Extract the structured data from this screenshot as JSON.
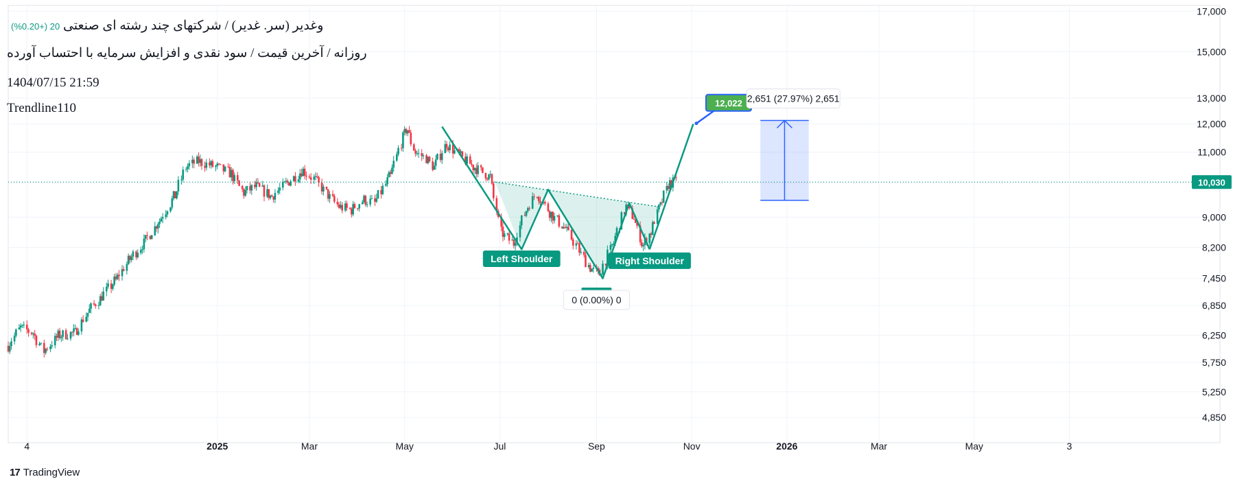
{
  "header": {
    "symbol": "وغدیر (سر. غدیر) / شرکتهای چند رشته ای صنعتی",
    "change": "20 (+0.20%)",
    "subtitle": "روزانه / آخرین قیمت / سود نقدی و افزایش سرمایه با احتساب آورده",
    "datetime": "1404/07/15 21:59",
    "author": "Trendline110"
  },
  "footer": {
    "brand": "TradingView",
    "logo_icon": "tradingview-logo-icon"
  },
  "colors": {
    "up": "#089981",
    "down": "#f23645",
    "pattern": "#089981",
    "pattern_fill": "rgba(8,153,129,0.14)",
    "projection": "#2962ff",
    "projection_fill": "rgba(41,98,255,0.16)",
    "target_badge": "#4caf50",
    "price_badge": "#089981",
    "grid": "#f0f3fa"
  },
  "chart_data": {
    "type": "candlestick",
    "y_scale": "log",
    "ylim": [
      4700,
      17300
    ],
    "x_range": [
      "2024-08-20",
      "2026-09-10"
    ],
    "y_ticks": [
      17000,
      15000,
      13000,
      12000,
      11000,
      10000,
      9000,
      8200,
      7450,
      6850,
      6250,
      5750,
      5250,
      4850
    ],
    "y_tick_labels": [
      "17,000",
      "15,000",
      "13,000",
      "12,000",
      "11,000",
      "10,000",
      "9,000",
      "8,200",
      "7,450",
      "6,850",
      "6,250",
      "5,750",
      "5,250",
      "4,850"
    ],
    "x_ticks": [
      {
        "date": "2024-09-01",
        "label": "4"
      },
      {
        "date": "2025-01-01",
        "label": "2025"
      },
      {
        "date": "2025-03-01",
        "label": "Mar"
      },
      {
        "date": "2025-05-01",
        "label": "May"
      },
      {
        "date": "2025-07-01",
        "label": "Jul"
      },
      {
        "date": "2025-09-01",
        "label": "Sep"
      },
      {
        "date": "2025-11-01",
        "label": "Nov"
      },
      {
        "date": "2026-01-01",
        "label": "2026"
      },
      {
        "date": "2026-03-01",
        "label": "Mar"
      },
      {
        "date": "2026-05-01",
        "label": "May"
      },
      {
        "date": "2026-07-01",
        "label": "3"
      }
    ],
    "last_price": 10030,
    "last_price_label": "10,030",
    "close_path": [
      [
        "2024-08-20",
        6050
      ],
      [
        "2024-08-28",
        6400
      ],
      [
        "2024-09-05",
        6300
      ],
      [
        "2024-09-12",
        5950
      ],
      [
        "2024-09-22",
        6250
      ],
      [
        "2024-10-02",
        6300
      ],
      [
        "2024-10-10",
        6700
      ],
      [
        "2024-10-18",
        7000
      ],
      [
        "2024-10-28",
        7400
      ],
      [
        "2024-11-06",
        7900
      ],
      [
        "2024-11-15",
        8300
      ],
      [
        "2024-11-25",
        8900
      ],
      [
        "2024-12-05",
        9600
      ],
      [
        "2024-12-12",
        10500
      ],
      [
        "2024-12-20",
        10700
      ],
      [
        "2025-01-01",
        10500
      ],
      [
        "2025-01-10",
        10300
      ],
      [
        "2025-01-18",
        9700
      ],
      [
        "2025-01-26",
        9900
      ],
      [
        "2025-02-05",
        9600
      ],
      [
        "2025-02-15",
        10000
      ],
      [
        "2025-02-25",
        10400
      ],
      [
        "2025-03-05",
        10100
      ],
      [
        "2025-03-12",
        9700
      ],
      [
        "2025-03-20",
        9300
      ],
      [
        "2025-03-28",
        9200
      ],
      [
        "2025-04-05",
        9500
      ],
      [
        "2025-04-12",
        9400
      ],
      [
        "2025-04-22",
        10200
      ],
      [
        "2025-04-30",
        11500
      ],
      [
        "2025-05-03",
        11800
      ],
      [
        "2025-05-08",
        11000
      ],
      [
        "2025-05-15",
        10800
      ],
      [
        "2025-05-20",
        10500
      ],
      [
        "2025-05-28",
        11300
      ],
      [
        "2025-06-05",
        10900
      ],
      [
        "2025-06-15",
        10500
      ],
      [
        "2025-06-25",
        10200
      ],
      [
        "2025-07-02",
        8600
      ],
      [
        "2025-07-10",
        8300
      ],
      [
        "2025-07-18",
        9200
      ],
      [
        "2025-07-25",
        9700
      ],
      [
        "2025-08-03",
        9100
      ],
      [
        "2025-08-12",
        8700
      ],
      [
        "2025-08-20",
        8200
      ],
      [
        "2025-08-28",
        7700
      ],
      [
        "2025-09-03",
        7550
      ],
      [
        "2025-09-12",
        8300
      ],
      [
        "2025-09-20",
        9300
      ],
      [
        "2025-09-25",
        9000
      ],
      [
        "2025-10-01",
        8250
      ],
      [
        "2025-10-06",
        8600
      ],
      [
        "2025-10-12",
        9300
      ],
      [
        "2025-10-18",
        10000
      ],
      [
        "2025-10-23",
        10030
      ]
    ],
    "annotations": [
      {
        "type": "hs-pattern",
        "points": [
          [
            "2025-05-25",
            11900
          ],
          [
            "2025-07-15",
            8150
          ],
          [
            "2025-08-01",
            9800
          ],
          [
            "2025-09-05",
            7450
          ],
          [
            "2025-09-22",
            9400
          ],
          [
            "2025-10-05",
            8150
          ],
          [
            "2025-11-02",
            12000
          ]
        ]
      },
      {
        "type": "label",
        "text": "Left Shoulder",
        "date": "2025-07-15",
        "price": 7950
      },
      {
        "type": "label",
        "text": "Right Shoulder",
        "date": "2025-10-05",
        "price": 7900
      },
      {
        "type": "measure",
        "text": "0 (0.00%) 0",
        "date": "2025-09-01",
        "price": 7000
      },
      {
        "type": "target",
        "text": "12,022",
        "date": "2025-11-04",
        "price": 12022
      },
      {
        "type": "projection",
        "text": "2,651 (27.97%) 2,651",
        "date_from": "2025-12-15",
        "date_to": "2026-01-15",
        "price_from": 9480,
        "price_to": 12131
      }
    ]
  }
}
